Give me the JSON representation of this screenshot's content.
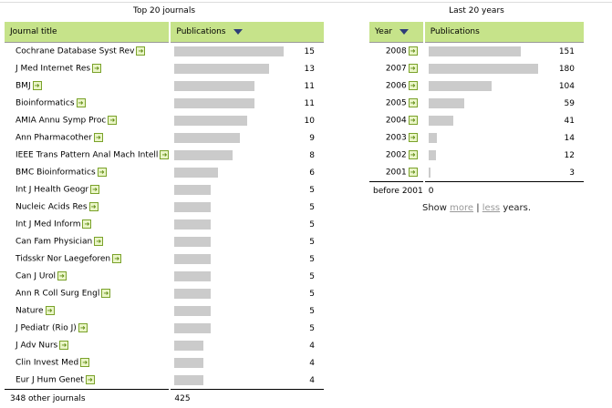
{
  "journals": {
    "caption": "Top 20 journals",
    "col_title": "Journal title",
    "col_pubs": "Publications",
    "rows": [
      [
        "Cochrane Database Syst Rev",
        15
      ],
      [
        "J Med Internet Res",
        13
      ],
      [
        "BMJ",
        11
      ],
      [
        "Bioinformatics",
        11
      ],
      [
        "AMIA Annu Symp Proc",
        10
      ],
      [
        "Ann Pharmacother",
        9
      ],
      [
        "IEEE Trans Pattern Anal Mach Intell",
        8
      ],
      [
        "BMC Bioinformatics",
        6
      ],
      [
        "Int J Health Geogr",
        5
      ],
      [
        "Nucleic Acids Res",
        5
      ],
      [
        "Int J Med Inform",
        5
      ],
      [
        "Can Fam Physician",
        5
      ],
      [
        "Tidsskr Nor Laegeforen",
        5
      ],
      [
        "Can J Urol",
        5
      ],
      [
        "Ann R Coll Surg Engl",
        5
      ],
      [
        "Nature",
        5
      ],
      [
        "J Pediatr (Rio J)",
        5
      ],
      [
        "J Adv Nurs",
        4
      ],
      [
        "Clin Invest Med",
        4
      ],
      [
        "Eur J Hum Genet",
        4
      ]
    ],
    "other_label": "348 other journals",
    "other_value": "425",
    "sorted_by": "Publications"
  },
  "years": {
    "caption": "Last 20 years",
    "col_year": "Year",
    "col_pubs": "Publications",
    "rows": [
      [
        "2008",
        151
      ],
      [
        "2007",
        180
      ],
      [
        "2006",
        104
      ],
      [
        "2005",
        59
      ],
      [
        "2004",
        41
      ],
      [
        "2003",
        14
      ],
      [
        "2002",
        12
      ],
      [
        "2001",
        3
      ]
    ],
    "before_label": "before 2001",
    "before_value": "0",
    "sorted_by": "Year"
  },
  "show": {
    "prefix": "Show ",
    "more": "more",
    "sep": " | ",
    "less": "less",
    "suffix": " years."
  },
  "colors": {
    "header": "#c6e38a",
    "bar": "#cbcbcb",
    "arrow": "#5d8a10"
  },
  "icons": {
    "link": "green-arrow-icon",
    "sort": "sort-down-triangle-icon"
  }
}
